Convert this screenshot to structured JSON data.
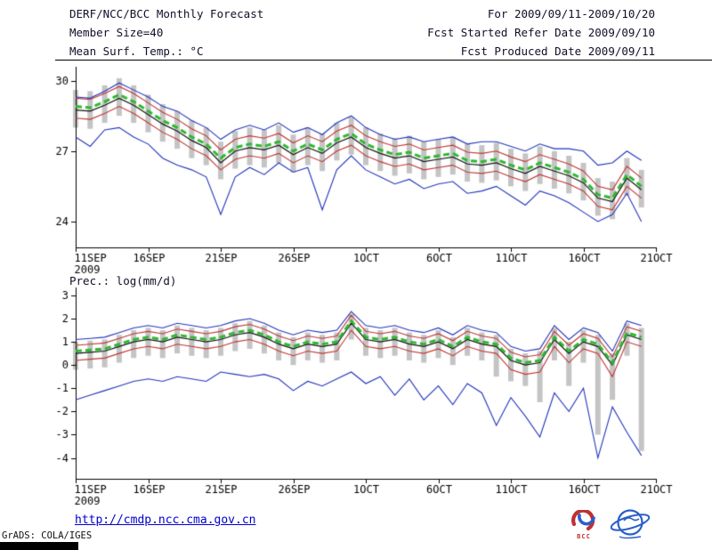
{
  "header": {
    "left": {
      "line1": "DERF/NCC/BCC Monthly Forecast",
      "line2": "Member Size=40",
      "line3": "Mean Surf. Temp.: °C"
    },
    "right": {
      "line1": "For 2009/09/11-2009/10/20",
      "line2": "Fcst Started Refer Date 2009/09/10",
      "line3": "Fcst Produced Date 2009/09/11"
    }
  },
  "footer": {
    "link": "http://cmdp.ncc.cma.gov.cn",
    "grads_credit": "GrADS: COLA/IGES",
    "bcc_label": "BCC"
  },
  "colors": {
    "text": "#101028",
    "axis": "#000000",
    "spread_bar": "#c4c4c4",
    "ensemble_mean_green": "#2eb82e",
    "median_black": "#101010",
    "quartile_red": "#c23333",
    "extreme_blue": "#2233bb",
    "link_blue": "#0000cc"
  },
  "chart_data": [
    {
      "type": "line",
      "title": "Mean Surf. Temp.: °C",
      "ylim": [
        22.9,
        30.4
      ],
      "yticks": [
        24,
        27,
        30
      ],
      "x_max_day": 40,
      "x_ticks": [
        {
          "d": 0,
          "label": "11SEP",
          "sublabel": "2009"
        },
        {
          "d": 5,
          "label": "16SEP"
        },
        {
          "d": 10,
          "label": "21SEP"
        },
        {
          "d": 15,
          "label": "26SEP"
        },
        {
          "d": 20,
          "label": "1OCT"
        },
        {
          "d": 25,
          "label": "6OCT"
        },
        {
          "d": 30,
          "label": "11OCT"
        },
        {
          "d": 35,
          "label": "16OCT"
        },
        {
          "d": 40,
          "label": "21OCT"
        }
      ],
      "bars": {
        "name": "ensemble-spread",
        "color": "#c4c4c4",
        "low": [
          28.0,
          27.95,
          28.2,
          28.5,
          28.2,
          27.8,
          27.4,
          27.1,
          26.7,
          26.4,
          25.8,
          26.25,
          26.4,
          26.3,
          26.5,
          26.1,
          26.4,
          26.15,
          26.6,
          26.85,
          26.4,
          26.15,
          25.95,
          26.05,
          25.8,
          25.9,
          26.0,
          25.7,
          25.65,
          25.75,
          25.5,
          25.3,
          25.6,
          25.4,
          25.2,
          24.9,
          24.25,
          24.1,
          25.1,
          24.6
        ],
        "high": [
          29.6,
          29.55,
          29.8,
          30.1,
          29.8,
          29.4,
          29.0,
          28.7,
          28.3,
          28.0,
          27.4,
          27.85,
          28.0,
          27.9,
          28.1,
          27.7,
          28.0,
          27.75,
          28.2,
          28.45,
          28.0,
          27.75,
          27.55,
          27.65,
          27.4,
          27.5,
          27.6,
          27.3,
          27.25,
          27.35,
          27.1,
          26.9,
          27.2,
          27.0,
          26.8,
          26.5,
          25.85,
          25.7,
          26.7,
          26.2
        ]
      },
      "series": [
        {
          "name": "maximum",
          "color": "#2233bb",
          "width": 1.1,
          "values": [
            29.3,
            29.25,
            29.55,
            29.9,
            29.6,
            29.3,
            28.9,
            28.7,
            28.3,
            28.0,
            27.5,
            27.9,
            28.1,
            27.9,
            28.2,
            27.8,
            28.0,
            27.7,
            28.2,
            28.5,
            28.0,
            27.7,
            27.5,
            27.6,
            27.4,
            27.5,
            27.6,
            27.3,
            27.4,
            27.4,
            27.2,
            27.0,
            27.3,
            27.1,
            27.1,
            27.0,
            26.4,
            26.5,
            27.0,
            26.6
          ]
        },
        {
          "name": "minimum",
          "color": "#2233bb",
          "width": 1.1,
          "values": [
            27.6,
            27.2,
            27.9,
            28.0,
            27.6,
            27.3,
            26.7,
            26.4,
            26.2,
            25.9,
            24.3,
            25.9,
            26.3,
            26.0,
            26.5,
            26.1,
            26.3,
            24.5,
            26.2,
            26.8,
            26.2,
            25.9,
            25.6,
            25.8,
            25.4,
            25.6,
            25.7,
            25.2,
            25.3,
            25.5,
            25.1,
            24.7,
            25.3,
            25.1,
            24.8,
            24.4,
            24.0,
            24.3,
            25.2,
            24.0
          ]
        },
        {
          "name": "upper-quartile",
          "color": "#c23333",
          "width": 1.1,
          "values": [
            29.25,
            29.2,
            29.45,
            29.75,
            29.45,
            29.05,
            28.65,
            28.35,
            27.95,
            27.65,
            27.05,
            27.5,
            27.65,
            27.55,
            27.75,
            27.35,
            27.65,
            27.4,
            27.85,
            28.1,
            27.65,
            27.4,
            27.2,
            27.3,
            27.05,
            27.15,
            27.25,
            26.95,
            26.9,
            27.0,
            26.75,
            26.55,
            26.85,
            26.65,
            26.45,
            26.15,
            25.5,
            25.35,
            26.35,
            25.85
          ]
        },
        {
          "name": "lower-quartile",
          "color": "#c23333",
          "width": 1.1,
          "values": [
            28.4,
            28.35,
            28.6,
            28.9,
            28.6,
            28.2,
            27.8,
            27.5,
            27.1,
            26.8,
            26.2,
            26.65,
            26.8,
            26.7,
            26.9,
            26.5,
            26.8,
            26.55,
            27.0,
            27.25,
            26.8,
            26.55,
            26.35,
            26.45,
            26.2,
            26.3,
            26.4,
            26.1,
            26.05,
            26.15,
            25.9,
            25.7,
            26.0,
            25.8,
            25.6,
            25.3,
            24.65,
            24.5,
            25.5,
            25.0
          ]
        },
        {
          "name": "median",
          "color": "#101010",
          "width": 1.2,
          "values": [
            28.75,
            28.7,
            28.95,
            29.25,
            28.95,
            28.55,
            28.15,
            27.85,
            27.45,
            27.15,
            26.5,
            27.0,
            27.15,
            27.05,
            27.25,
            26.85,
            27.15,
            26.9,
            27.35,
            27.6,
            27.15,
            26.9,
            26.7,
            26.8,
            26.55,
            26.65,
            26.75,
            26.45,
            26.4,
            26.5,
            26.25,
            26.05,
            26.35,
            26.15,
            25.95,
            25.65,
            25.0,
            24.85,
            25.85,
            25.35
          ]
        },
        {
          "name": "ensemble-mean",
          "color": "#2eb82e",
          "width": 3,
          "dashed": true,
          "values": [
            28.9,
            28.85,
            29.1,
            29.4,
            29.1,
            28.7,
            28.3,
            28.0,
            27.6,
            27.3,
            26.7,
            27.15,
            27.3,
            27.2,
            27.4,
            27.0,
            27.3,
            27.05,
            27.5,
            27.75,
            27.3,
            27.05,
            26.85,
            26.95,
            26.7,
            26.8,
            26.9,
            26.6,
            26.55,
            26.65,
            26.4,
            26.2,
            26.5,
            26.3,
            26.1,
            25.8,
            25.15,
            25.0,
            26.0,
            25.5
          ]
        }
      ]
    },
    {
      "type": "line",
      "title": "Prec.: log(mm/d)",
      "ylim": [
        -4.9,
        3.15
      ],
      "yticks": [
        -4,
        -3,
        -2,
        -1,
        0,
        1,
        2,
        3
      ],
      "x_max_day": 40,
      "x_ticks": [
        {
          "d": 0,
          "label": "11SEP",
          "sublabel": "2009"
        },
        {
          "d": 5,
          "label": "16SEP"
        },
        {
          "d": 10,
          "label": "21SEP"
        },
        {
          "d": 15,
          "label": "26SEP"
        },
        {
          "d": 20,
          "label": "1OCT"
        },
        {
          "d": 25,
          "label": "6OCT"
        },
        {
          "d": 30,
          "label": "11OCT"
        },
        {
          "d": 35,
          "label": "16OCT"
        },
        {
          "d": 40,
          "label": "21OCT"
        }
      ],
      "bars": {
        "name": "ensemble-spread",
        "color": "#c4c4c4",
        "low": [
          -0.2,
          -0.15,
          -0.1,
          0.1,
          0.3,
          0.4,
          0.3,
          0.5,
          0.4,
          0.3,
          0.4,
          0.6,
          0.7,
          0.5,
          0.2,
          0.0,
          0.2,
          0.1,
          0.2,
          1.1,
          0.4,
          0.3,
          0.4,
          0.2,
          0.1,
          0.3,
          0.0,
          0.4,
          0.2,
          -0.5,
          -0.7,
          -0.9,
          -1.6,
          0.2,
          -0.9,
          0.1,
          -3.0,
          -1.5,
          0.4,
          -3.7
        ],
        "high": [
          1.0,
          1.05,
          1.1,
          1.3,
          1.5,
          1.6,
          1.5,
          1.7,
          1.6,
          1.5,
          1.6,
          1.8,
          1.9,
          1.7,
          1.4,
          1.2,
          1.4,
          1.3,
          1.4,
          2.2,
          1.6,
          1.5,
          1.6,
          1.4,
          1.3,
          1.5,
          1.2,
          1.6,
          1.4,
          1.3,
          0.7,
          0.5,
          0.6,
          1.6,
          1.0,
          1.5,
          1.3,
          0.5,
          1.8,
          1.6
        ]
      },
      "series": [
        {
          "name": "maximum",
          "color": "#2233bb",
          "width": 1.1,
          "values": [
            1.1,
            1.15,
            1.2,
            1.4,
            1.6,
            1.7,
            1.6,
            1.8,
            1.7,
            1.6,
            1.7,
            1.9,
            2.0,
            1.8,
            1.5,
            1.3,
            1.5,
            1.4,
            1.5,
            2.3,
            1.7,
            1.6,
            1.7,
            1.5,
            1.4,
            1.6,
            1.3,
            1.7,
            1.5,
            1.4,
            0.8,
            0.6,
            0.7,
            1.7,
            1.1,
            1.6,
            1.4,
            0.6,
            1.9,
            1.7
          ]
        },
        {
          "name": "minimum",
          "color": "#2233bb",
          "width": 1.1,
          "values": [
            -1.5,
            -1.3,
            -1.1,
            -0.9,
            -0.7,
            -0.6,
            -0.7,
            -0.5,
            -0.6,
            -0.7,
            -0.3,
            -0.4,
            -0.5,
            -0.4,
            -0.6,
            -1.1,
            -0.7,
            -0.9,
            -0.6,
            -0.3,
            -0.8,
            -0.5,
            -1.3,
            -0.6,
            -1.5,
            -0.9,
            -1.7,
            -0.8,
            -1.2,
            -2.6,
            -1.4,
            -2.2,
            -3.1,
            -1.2,
            -2.0,
            -1.0,
            -4.0,
            -1.8,
            -2.9,
            -3.9
          ]
        },
        {
          "name": "upper-quartile",
          "color": "#c23333",
          "width": 1.1,
          "values": [
            0.85,
            0.9,
            0.95,
            1.15,
            1.35,
            1.45,
            1.35,
            1.55,
            1.45,
            1.35,
            1.45,
            1.65,
            1.75,
            1.55,
            1.25,
            1.05,
            1.25,
            1.15,
            1.25,
            2.15,
            1.45,
            1.35,
            1.45,
            1.25,
            1.15,
            1.35,
            1.05,
            1.45,
            1.25,
            1.15,
            0.55,
            0.35,
            0.45,
            1.45,
            0.85,
            1.35,
            1.15,
            0.35,
            1.65,
            1.45
          ]
        },
        {
          "name": "lower-quartile",
          "color": "#c23333",
          "width": 1.1,
          "values": [
            0.2,
            0.25,
            0.3,
            0.5,
            0.7,
            0.8,
            0.7,
            0.9,
            0.8,
            0.7,
            0.8,
            1.0,
            1.1,
            0.9,
            0.6,
            0.4,
            0.6,
            0.5,
            0.6,
            1.5,
            0.8,
            0.7,
            0.8,
            0.6,
            0.5,
            0.7,
            0.4,
            0.8,
            0.6,
            0.5,
            -0.2,
            -0.4,
            -0.3,
            0.8,
            0.1,
            0.7,
            0.5,
            -0.5,
            1.0,
            0.8
          ]
        },
        {
          "name": "median",
          "color": "#101010",
          "width": 1.2,
          "values": [
            0.5,
            0.55,
            0.6,
            0.8,
            1.0,
            1.1,
            1.0,
            1.2,
            1.1,
            1.0,
            1.1,
            1.3,
            1.4,
            1.2,
            0.9,
            0.7,
            0.9,
            0.8,
            0.9,
            1.8,
            1.1,
            1.0,
            1.1,
            0.9,
            0.8,
            1.0,
            0.7,
            1.1,
            0.9,
            0.8,
            0.2,
            0.0,
            0.1,
            1.1,
            0.5,
            1.0,
            0.8,
            0.0,
            1.3,
            1.1
          ]
        },
        {
          "name": "ensemble-mean",
          "color": "#2eb82e",
          "width": 3,
          "dashed": true,
          "values": [
            0.6,
            0.65,
            0.7,
            0.9,
            1.1,
            1.2,
            1.1,
            1.3,
            1.2,
            1.1,
            1.2,
            1.4,
            1.5,
            1.3,
            1.0,
            0.8,
            1.0,
            0.9,
            1.0,
            1.9,
            1.2,
            1.1,
            1.2,
            1.0,
            0.9,
            1.1,
            0.8,
            1.2,
            1.0,
            0.9,
            0.3,
            0.1,
            0.2,
            1.2,
            0.6,
            1.1,
            0.9,
            0.1,
            1.4,
            1.2
          ]
        }
      ]
    }
  ]
}
